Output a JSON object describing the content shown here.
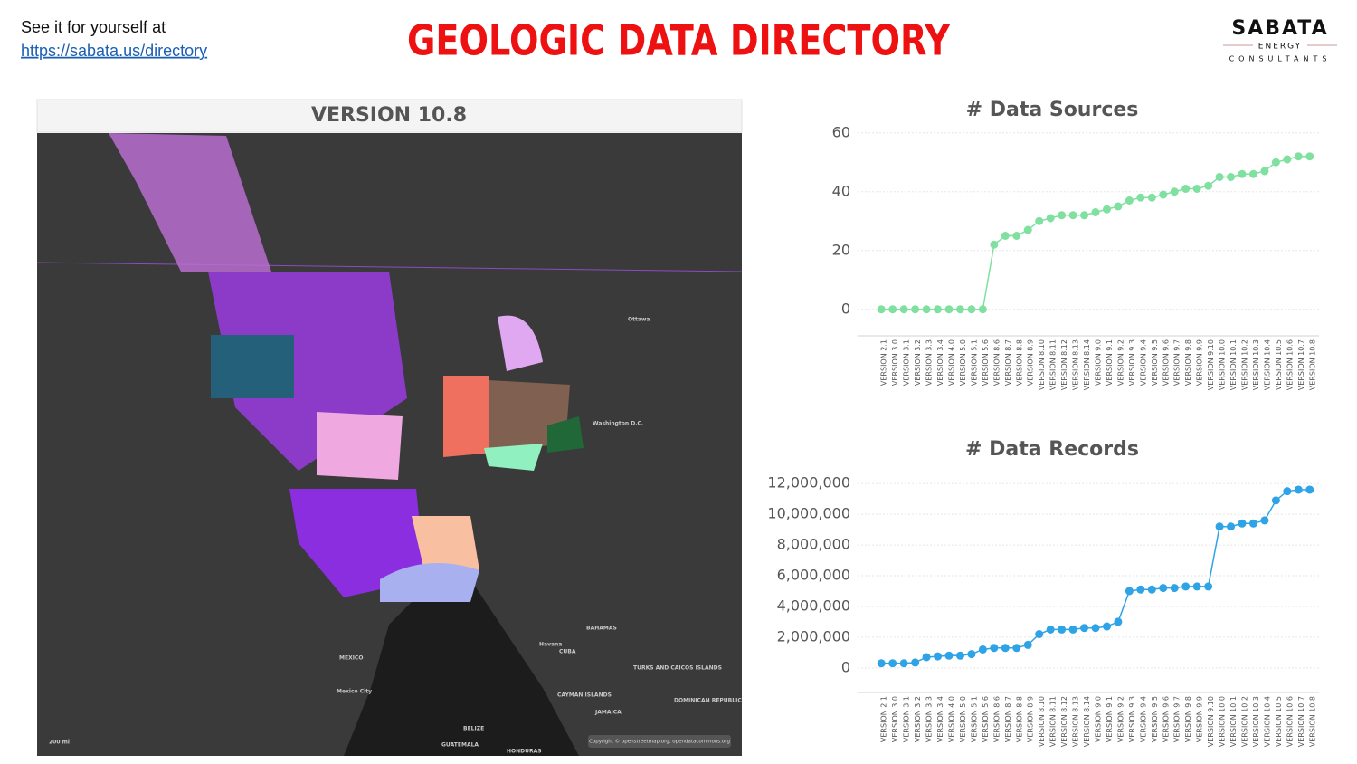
{
  "header": {
    "intro": "See it for yourself at",
    "link": "https://sabata.us/directory",
    "title": "GEOLOGIC DATA DIRECTORY",
    "logo": {
      "name": "SABATA",
      "line2": "ENERGY",
      "line3": "CONSULTANTS"
    }
  },
  "map": {
    "title": "VERSION 10.8",
    "labels": [
      "Ottawa",
      "Washington D.C.",
      "MEXICO",
      "Mexico City",
      "BAHAMAS",
      "Havana",
      "CUBA",
      "TURKS AND CAICOS ISLANDS",
      "CAYMAN ISLANDS",
      "JAMAICA",
      "DOMINICAN REPUBLIC",
      "BELIZE",
      "GUATEMALA",
      "HONDURAS",
      "200 mi",
      "Copyright © openstreetmap.org, opendatacommons.org"
    ]
  },
  "chart_data": [
    {
      "type": "line",
      "title": "# Data Sources",
      "color": "#7fe0a0",
      "categories": [
        "VERSION 2.1",
        "VERSION 3.0",
        "VERSION 3.1",
        "VERSION 3.2",
        "VERSION 3.3",
        "VERSION 3.4",
        "VERSION 4.0",
        "VERSION 5.0",
        "VERSION 5.1",
        "VERSION 5.6",
        "VERSION 8.6",
        "VERSION 8.7",
        "VERSION 8.8",
        "VERSION 8.9",
        "VERSION 8.10",
        "VERSION 8.11",
        "VERSION 8.12",
        "VERSION 8.13",
        "VERSION 8.14",
        "VERSION 9.0",
        "VERSION 9.1",
        "VERSION 9.2",
        "VERSION 9.3",
        "VERSION 9.4",
        "VERSION 9.5",
        "VERSION 9.6",
        "VERSION 9.7",
        "VERSION 9.8",
        "VERSION 9.9",
        "VERSION 9.10",
        "VERSION 10.0",
        "VERSION 10.1",
        "VERSION 10.2",
        "VERSION 10.3",
        "VERSION 10.4",
        "VERSION 10.5",
        "VERSION 10.6",
        "VERSION 10.7",
        "VERSION 10.8"
      ],
      "values": [
        0,
        0,
        0,
        0,
        0,
        0,
        0,
        0,
        0,
        0,
        22,
        25,
        25,
        27,
        30,
        31,
        32,
        32,
        32,
        33,
        34,
        35,
        37,
        38,
        38,
        39,
        40,
        41,
        41,
        42,
        45,
        45,
        46,
        46,
        47,
        50,
        51,
        52,
        52
      ],
      "ylim": [
        -9,
        63
      ],
      "yticks": [
        0,
        20,
        40,
        60
      ],
      "grid": true
    },
    {
      "type": "line",
      "title": "# Data Records",
      "color": "#2ea3e6",
      "categories": [
        "VERSION 2.1",
        "VERSION 3.0",
        "VERSION 3.1",
        "VERSION 3.2",
        "VERSION 3.3",
        "VERSION 3.4",
        "VERSION 4.0",
        "VERSION 5.0",
        "VERSION 5.1",
        "VERSION 5.6",
        "VERSION 8.6",
        "VERSION 8.7",
        "VERSION 8.8",
        "VERSION 8.9",
        "VERSION 8.10",
        "VERSION 8.11",
        "VERSION 8.12",
        "VERSION 8.13",
        "VERSION 8.14",
        "VERSION 9.0",
        "VERSION 9.1",
        "VERSION 9.2",
        "VERSION 9.3",
        "VERSION 9.4",
        "VERSION 9.5",
        "VERSION 9.6",
        "VERSION 9.7",
        "VERSION 9.8",
        "VERSION 9.9",
        "VERSION 9.10",
        "VERSION 10.0",
        "VERSION 10.1",
        "VERSION 10.2",
        "VERSION 10.3",
        "VERSION 10.4",
        "VERSION 10.5",
        "VERSION 10.6",
        "VERSION 10.7",
        "VERSION 10.8"
      ],
      "values": [
        300000,
        300000,
        300000,
        350000,
        700000,
        750000,
        800000,
        800000,
        900000,
        1200000,
        1300000,
        1300000,
        1300000,
        1500000,
        2200000,
        2500000,
        2500000,
        2500000,
        2600000,
        2600000,
        2700000,
        3000000,
        5000000,
        5100000,
        5100000,
        5200000,
        5200000,
        5300000,
        5300000,
        5300000,
        9200000,
        9200000,
        9400000,
        9400000,
        9600000,
        10900000,
        11500000,
        11600000,
        11600000
      ],
      "ylim": [
        -1600000,
        12600000
      ],
      "yticks": [
        0,
        {
          "value": 2000000,
          "label": "2,000,000"
        },
        {
          "value": 4000000,
          "label": "4,000,000"
        },
        {
          "value": 6000000,
          "label": "6,000,000"
        },
        {
          "value": 8000000,
          "label": "8,000,000"
        },
        {
          "value": 10000000,
          "label": "10,000,000"
        },
        {
          "value": 12000000,
          "label": "12,000,000"
        }
      ],
      "grid": true
    }
  ]
}
